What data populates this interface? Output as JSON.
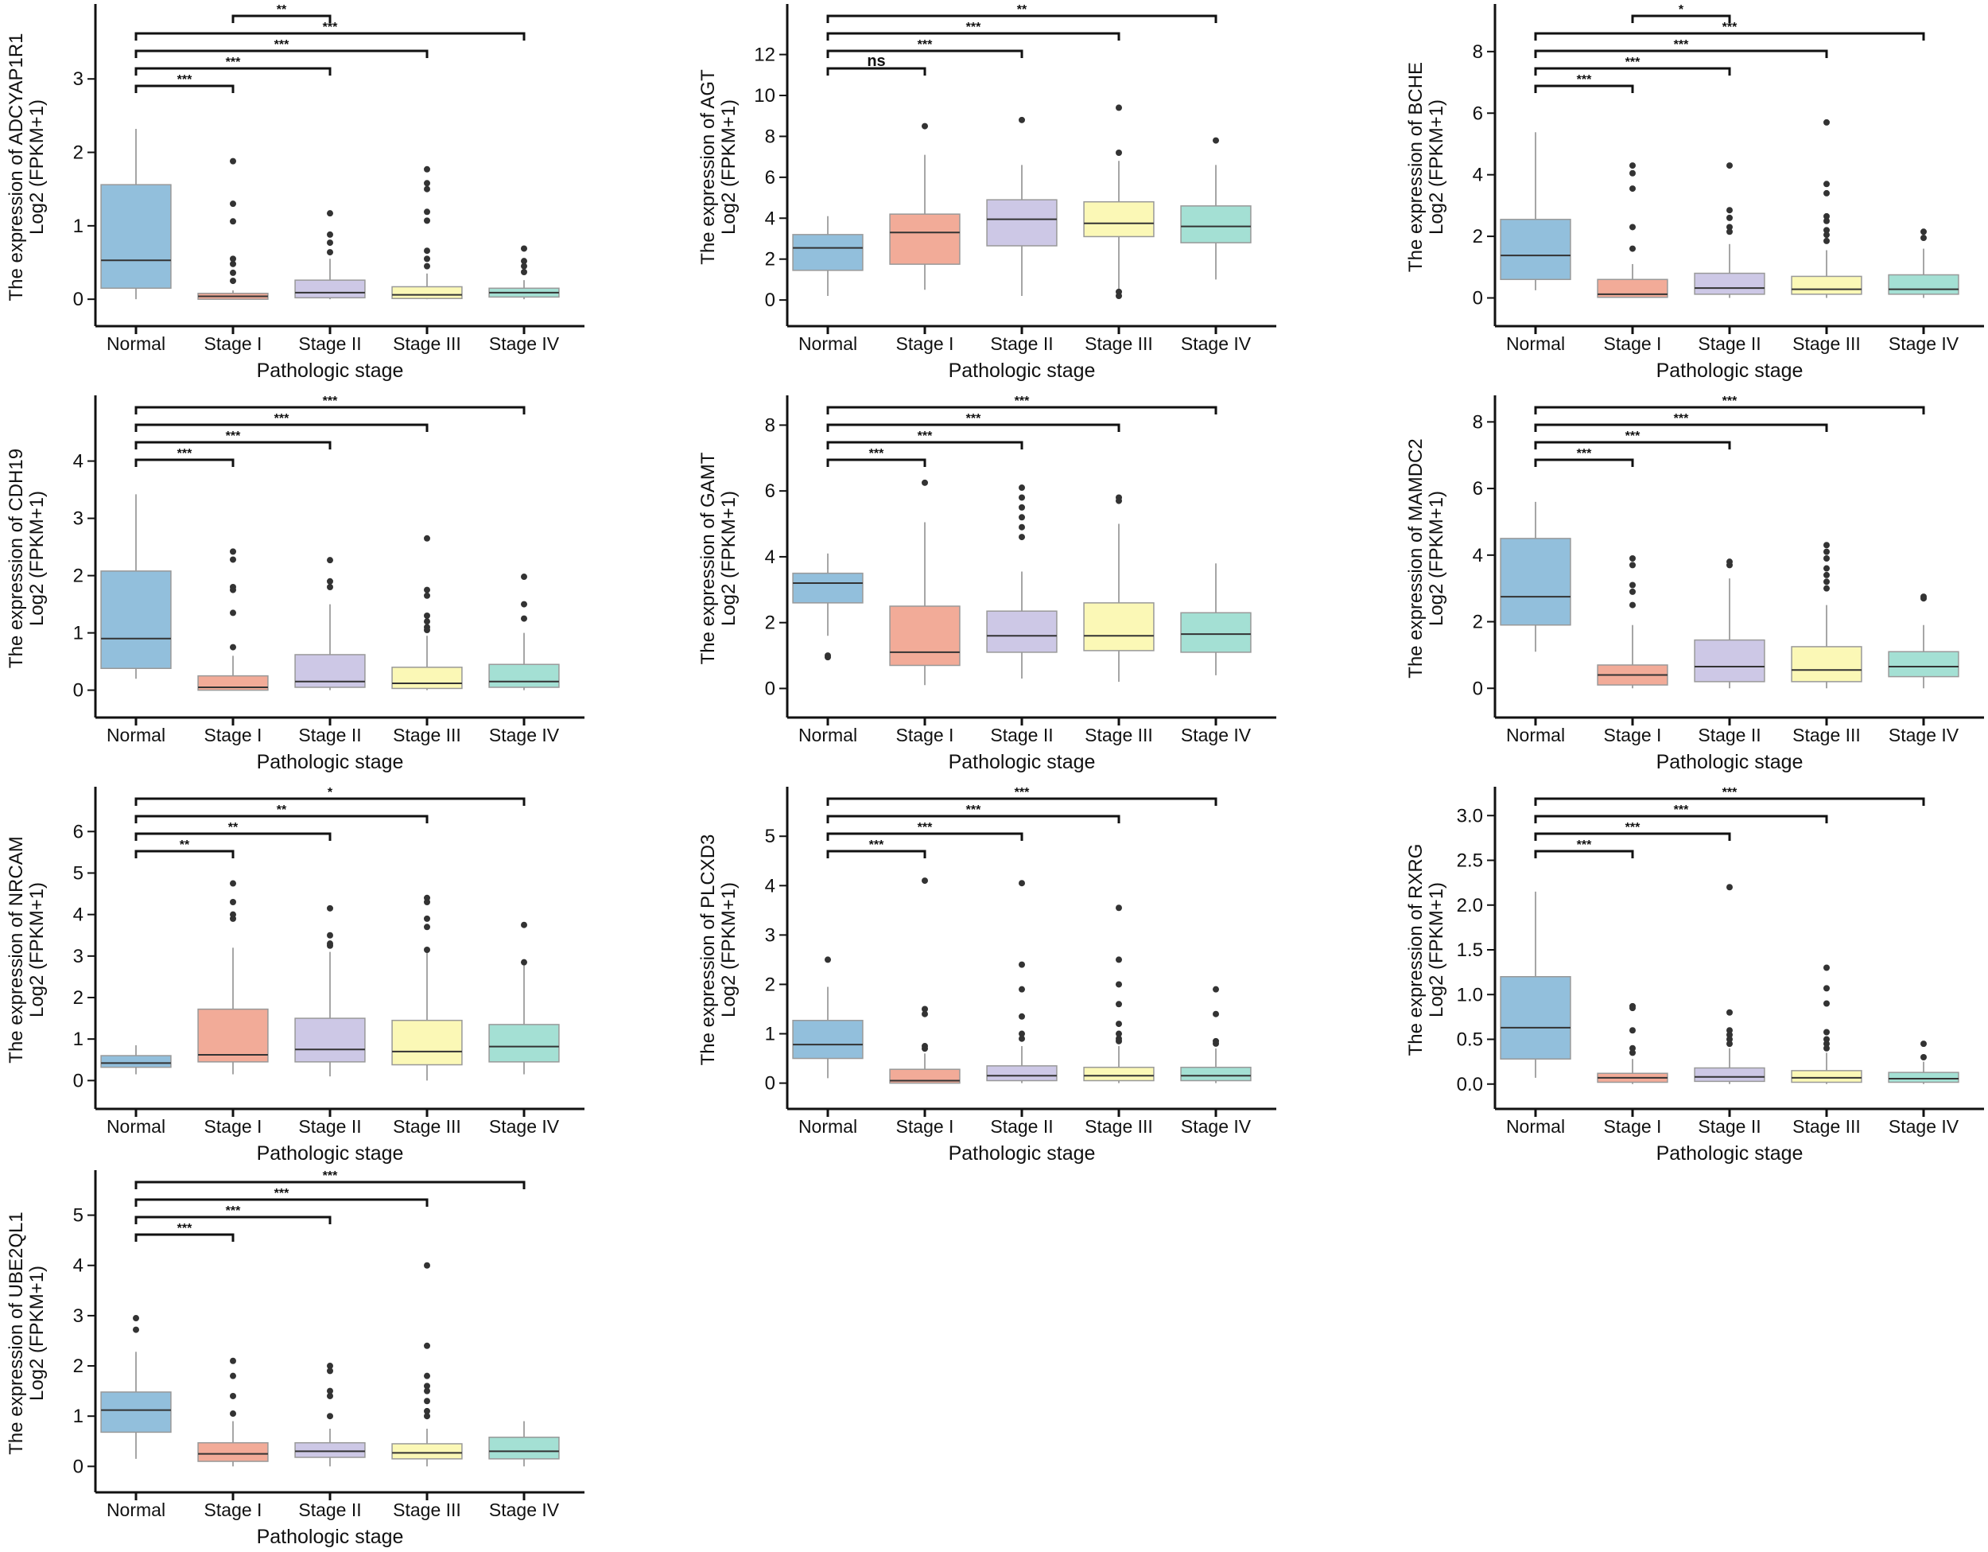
{
  "colors": {
    "Normal": "#92bfdc",
    "Stage I": "#f2ab98",
    "Stage II": "#cdc8e6",
    "Stage III": "#fbf8b6",
    "Stage IV": "#a4e0d4"
  },
  "chart_data": [
    {
      "type": "box",
      "gene": "ADCYAP1R1",
      "ylabel": "The expression of ADCYAP1R1",
      "ylabel2": "Log2 (FPKM+1)",
      "xlabel": "Pathologic stage",
      "categories": [
        "Normal",
        "Stage I",
        "Stage II",
        "Stage III",
        "Stage IV"
      ],
      "ylim": [
        -0.15,
        3.75
      ],
      "yticks": [
        "0",
        "1",
        "2",
        "3"
      ],
      "boxes": [
        {
          "lo": 0,
          "q1": 0.15,
          "med": 0.53,
          "q3": 1.56,
          "hi": 2.32,
          "out": []
        },
        {
          "lo": 0,
          "q1": 0,
          "med": 0.04,
          "q3": 0.08,
          "hi": 0.12,
          "out": [
            1.88,
            1.3,
            1.06,
            0.55,
            0.48,
            0.36,
            0.25
          ]
        },
        {
          "lo": 0,
          "q1": 0.02,
          "med": 0.09,
          "q3": 0.26,
          "hi": 0.55,
          "out": [
            1.17,
            0.88,
            0.77,
            0.64
          ]
        },
        {
          "lo": 0,
          "q1": 0.01,
          "med": 0.06,
          "q3": 0.17,
          "hi": 0.35,
          "out": [
            1.77,
            1.58,
            1.5,
            1.19,
            1.07,
            0.66,
            0.55,
            0.45
          ]
        },
        {
          "lo": 0,
          "q1": 0.03,
          "med": 0.09,
          "q3": 0.15,
          "hi": 0.26,
          "out": [
            0.69,
            0.52,
            0.45,
            0.37
          ]
        }
      ],
      "comparisons": [
        {
          "a": 0,
          "b": 1,
          "label": "***"
        },
        {
          "a": 0,
          "b": 2,
          "label": "***"
        },
        {
          "a": 0,
          "b": 3,
          "label": "***"
        },
        {
          "a": 0,
          "b": 4,
          "label": "***"
        },
        {
          "a": 1,
          "b": 2,
          "label": "**"
        }
      ]
    },
    {
      "type": "box",
      "gene": "AGT",
      "ylabel": "The expression of AGT",
      "ylabel2": "Log2 (FPKM+1)",
      "xlabel": "Pathologic stage",
      "categories": [
        "Normal",
        "Stage I",
        "Stage II",
        "Stage III",
        "Stage IV"
      ],
      "ylim": [
        -0.5,
        13.5
      ],
      "yticks": [
        "0",
        "2",
        "4",
        "6",
        "8",
        "10",
        "12"
      ],
      "boxes": [
        {
          "lo": 0.2,
          "q1": 1.45,
          "med": 2.55,
          "q3": 3.2,
          "hi": 4.1,
          "out": []
        },
        {
          "lo": 0.5,
          "q1": 1.75,
          "med": 3.3,
          "q3": 4.2,
          "hi": 7.1,
          "out": [
            8.5
          ]
        },
        {
          "lo": 0.2,
          "q1": 2.65,
          "med": 3.95,
          "q3": 4.9,
          "hi": 6.6,
          "out": [
            8.8
          ]
        },
        {
          "lo": 0.5,
          "q1": 3.1,
          "med": 3.75,
          "q3": 4.8,
          "hi": 6.8,
          "out": [
            9.4,
            7.2,
            0.4,
            0.2
          ]
        },
        {
          "lo": 1,
          "q1": 2.8,
          "med": 3.6,
          "q3": 4.6,
          "hi": 6.6,
          "out": [
            7.8
          ]
        }
      ],
      "comparisons": [
        {
          "a": 0,
          "b": 1,
          "label": "ns"
        },
        {
          "a": 0,
          "b": 2,
          "label": "***"
        },
        {
          "a": 0,
          "b": 3,
          "label": "***"
        },
        {
          "a": 0,
          "b": 4,
          "label": "**"
        }
      ]
    },
    {
      "type": "box",
      "gene": "BCHE",
      "ylabel": "The expression of BCHE",
      "ylabel2": "Log2 (FPKM+1)",
      "xlabel": "Pathologic stage",
      "categories": [
        "Normal",
        "Stage I",
        "Stage II",
        "Stage III",
        "Stage IV"
      ],
      "ylim": [
        -0.4,
        8.9
      ],
      "yticks": [
        "0",
        "2",
        "4",
        "6",
        "8"
      ],
      "boxes": [
        {
          "lo": 0.25,
          "q1": 0.6,
          "med": 1.38,
          "q3": 2.55,
          "hi": 5.38,
          "out": []
        },
        {
          "lo": 0,
          "q1": 0.02,
          "med": 0.12,
          "q3": 0.6,
          "hi": 1.1,
          "out": [
            4.3,
            4.05,
            3.55,
            2.3,
            1.6
          ]
        },
        {
          "lo": 0,
          "q1": 0.12,
          "med": 0.32,
          "q3": 0.8,
          "hi": 1.75,
          "out": [
            4.3,
            2.85,
            2.6,
            2.3,
            2.15
          ]
        },
        {
          "lo": 0,
          "q1": 0.12,
          "med": 0.28,
          "q3": 0.7,
          "hi": 1.55,
          "out": [
            5.7,
            3.7,
            3.4,
            2.65,
            2.5,
            2.2,
            2.05,
            1.85
          ]
        },
        {
          "lo": 0,
          "q1": 0.12,
          "med": 0.28,
          "q3": 0.75,
          "hi": 1.6,
          "out": [
            2.15,
            1.95
          ]
        }
      ],
      "comparisons": [
        {
          "a": 0,
          "b": 1,
          "label": "***"
        },
        {
          "a": 0,
          "b": 2,
          "label": "***"
        },
        {
          "a": 0,
          "b": 3,
          "label": "***"
        },
        {
          "a": 0,
          "b": 4,
          "label": "***"
        },
        {
          "a": 1,
          "b": 2,
          "label": "*"
        }
      ]
    },
    {
      "type": "box",
      "gene": "CDH19",
      "ylabel": "The expression of CDH19",
      "ylabel2": "Log2 (FPKM+1)",
      "xlabel": "Pathologic stage",
      "categories": [
        "Normal",
        "Stage I",
        "Stage II",
        "Stage III",
        "Stage IV"
      ],
      "ylim": [
        -0.2,
        4.8
      ],
      "yticks": [
        "0",
        "1",
        "2",
        "3",
        "4"
      ],
      "boxes": [
        {
          "lo": 0.2,
          "q1": 0.38,
          "med": 0.9,
          "q3": 2.08,
          "hi": 3.42,
          "out": []
        },
        {
          "lo": 0,
          "q1": 0,
          "med": 0.05,
          "q3": 0.25,
          "hi": 0.6,
          "out": [
            2.42,
            2.28,
            1.8,
            1.75,
            1.35,
            0.75
          ]
        },
        {
          "lo": 0,
          "q1": 0.05,
          "med": 0.15,
          "q3": 0.62,
          "hi": 1.5,
          "out": [
            2.27,
            1.9,
            1.8
          ]
        },
        {
          "lo": 0,
          "q1": 0.03,
          "med": 0.12,
          "q3": 0.4,
          "hi": 0.95,
          "out": [
            2.65,
            1.75,
            1.65,
            1.3,
            1.2,
            1.1,
            1.05
          ]
        },
        {
          "lo": 0,
          "q1": 0.05,
          "med": 0.15,
          "q3": 0.45,
          "hi": 1.0,
          "out": [
            1.98,
            1.5,
            1.25
          ]
        }
      ],
      "comparisons": [
        {
          "a": 0,
          "b": 1,
          "label": "***"
        },
        {
          "a": 0,
          "b": 2,
          "label": "***"
        },
        {
          "a": 0,
          "b": 3,
          "label": "***"
        },
        {
          "a": 0,
          "b": 4,
          "label": "***"
        }
      ]
    },
    {
      "type": "box",
      "gene": "GAMT",
      "ylabel": "The expression of GAMT",
      "ylabel2": "Log2 (FPKM+1)",
      "xlabel": "Pathologic stage",
      "categories": [
        "Normal",
        "Stage I",
        "Stage II",
        "Stage III",
        "Stage IV"
      ],
      "ylim": [
        -0.4,
        8.3
      ],
      "yticks": [
        "0",
        "2",
        "4",
        "6",
        "8"
      ],
      "boxes": [
        {
          "lo": 1.6,
          "q1": 2.6,
          "med": 3.2,
          "q3": 3.5,
          "hi": 4.1,
          "out": [
            1.0,
            0.95
          ]
        },
        {
          "lo": 0.1,
          "q1": 0.7,
          "med": 1.1,
          "q3": 2.5,
          "hi": 5.05,
          "out": [
            6.25
          ]
        },
        {
          "lo": 0.3,
          "q1": 1.1,
          "med": 1.6,
          "q3": 2.35,
          "hi": 3.55,
          "out": [
            6.1,
            5.8,
            5.5,
            5.2,
            4.9,
            4.6
          ]
        },
        {
          "lo": 0.2,
          "q1": 1.15,
          "med": 1.6,
          "q3": 2.6,
          "hi": 5.0,
          "out": [
            5.8,
            5.7
          ]
        },
        {
          "lo": 0.4,
          "q1": 1.1,
          "med": 1.65,
          "q3": 2.3,
          "hi": 3.8,
          "out": []
        }
      ],
      "comparisons": [
        {
          "a": 0,
          "b": 1,
          "label": "***"
        },
        {
          "a": 0,
          "b": 2,
          "label": "***"
        },
        {
          "a": 0,
          "b": 3,
          "label": "***"
        },
        {
          "a": 0,
          "b": 4,
          "label": "***"
        }
      ]
    },
    {
      "type": "box",
      "gene": "MAMDC2",
      "ylabel": "The expression of MAMDC2",
      "ylabel2": "Log2 (FPKM+1)",
      "xlabel": "Pathologic stage",
      "categories": [
        "Normal",
        "Stage I",
        "Stage II",
        "Stage III",
        "Stage IV"
      ],
      "ylim": [
        -0.4,
        8.2
      ],
      "yticks": [
        "0",
        "2",
        "4",
        "6",
        "8"
      ],
      "boxes": [
        {
          "lo": 1.1,
          "q1": 1.9,
          "med": 2.75,
          "q3": 4.5,
          "hi": 5.6,
          "out": []
        },
        {
          "lo": 0,
          "q1": 0.1,
          "med": 0.4,
          "q3": 0.7,
          "hi": 1.9,
          "out": [
            3.9,
            3.7,
            3.1,
            2.9,
            2.5
          ]
        },
        {
          "lo": 0,
          "q1": 0.2,
          "med": 0.65,
          "q3": 1.45,
          "hi": 3.3,
          "out": [
            3.8,
            3.7
          ]
        },
        {
          "lo": 0,
          "q1": 0.2,
          "med": 0.55,
          "q3": 1.25,
          "hi": 2.5,
          "out": [
            4.3,
            4.1,
            3.9,
            3.6,
            3.4,
            3.2,
            3.0
          ]
        },
        {
          "lo": 0,
          "q1": 0.35,
          "med": 0.65,
          "q3": 1.1,
          "hi": 1.9,
          "out": [
            2.75,
            2.7
          ]
        }
      ],
      "comparisons": [
        {
          "a": 0,
          "b": 1,
          "label": "***"
        },
        {
          "a": 0,
          "b": 2,
          "label": "***"
        },
        {
          "a": 0,
          "b": 3,
          "label": "***"
        },
        {
          "a": 0,
          "b": 4,
          "label": "***"
        }
      ]
    },
    {
      "type": "box",
      "gene": "NRCAM",
      "ylabel": "The expression of NRCAM",
      "ylabel2": "Log2 (FPKM+1)",
      "xlabel": "Pathologic stage",
      "categories": [
        "Normal",
        "Stage I",
        "Stage II",
        "Stage III",
        "Stage IV"
      ],
      "ylim": [
        -0.3,
        6.6
      ],
      "yticks": [
        "0",
        "1",
        "2",
        "3",
        "4",
        "5",
        "6"
      ],
      "boxes": [
        {
          "lo": 0.15,
          "q1": 0.32,
          "med": 0.42,
          "q3": 0.6,
          "hi": 0.85,
          "out": []
        },
        {
          "lo": 0.15,
          "q1": 0.45,
          "med": 0.62,
          "q3": 1.72,
          "hi": 3.2,
          "out": [
            4.75,
            4.3,
            4.0,
            3.9
          ]
        },
        {
          "lo": 0.1,
          "q1": 0.45,
          "med": 0.75,
          "q3": 1.5,
          "hi": 3.1,
          "out": [
            4.15,
            3.5,
            3.3,
            3.25
          ]
        },
        {
          "lo": 0,
          "q1": 0.38,
          "med": 0.7,
          "q3": 1.45,
          "hi": 3.1,
          "out": [
            4.4,
            4.3,
            3.9,
            3.7,
            3.15
          ]
        },
        {
          "lo": 0.15,
          "q1": 0.45,
          "med": 0.82,
          "q3": 1.35,
          "hi": 2.8,
          "out": [
            3.75,
            2.85
          ]
        }
      ],
      "comparisons": [
        {
          "a": 0,
          "b": 1,
          "label": "**"
        },
        {
          "a": 0,
          "b": 2,
          "label": "**"
        },
        {
          "a": 0,
          "b": 3,
          "label": "**"
        },
        {
          "a": 0,
          "b": 4,
          "label": "*"
        }
      ]
    },
    {
      "type": "box",
      "gene": "PLCXD3",
      "ylabel": "The expression of PLCXD3",
      "ylabel2": "Log2 (FPKM+1)",
      "xlabel": "Pathologic stage",
      "categories": [
        "Normal",
        "Stage I",
        "Stage II",
        "Stage III",
        "Stage IV"
      ],
      "ylim": [
        -0.2,
        5.6
      ],
      "yticks": [
        "0",
        "1",
        "2",
        "3",
        "4",
        "5"
      ],
      "boxes": [
        {
          "lo": 0.1,
          "q1": 0.5,
          "med": 0.78,
          "q3": 1.27,
          "hi": 1.95,
          "out": [
            2.5
          ]
        },
        {
          "lo": 0,
          "q1": 0,
          "med": 0.05,
          "q3": 0.28,
          "hi": 0.6,
          "out": [
            4.1,
            1.5,
            1.4,
            0.75,
            0.7
          ]
        },
        {
          "lo": 0,
          "q1": 0.05,
          "med": 0.15,
          "q3": 0.35,
          "hi": 0.75,
          "out": [
            4.05,
            2.4,
            1.9,
            1.35,
            1.0,
            0.9
          ]
        },
        {
          "lo": 0,
          "q1": 0.05,
          "med": 0.15,
          "q3": 0.32,
          "hi": 0.75,
          "out": [
            3.55,
            2.5,
            2.0,
            1.6,
            1.2,
            1.0,
            0.9,
            0.85
          ]
        },
        {
          "lo": 0,
          "q1": 0.05,
          "med": 0.15,
          "q3": 0.32,
          "hi": 0.7,
          "out": [
            1.9,
            1.4,
            0.85,
            0.8
          ]
        }
      ],
      "comparisons": [
        {
          "a": 0,
          "b": 1,
          "label": "***"
        },
        {
          "a": 0,
          "b": 2,
          "label": "***"
        },
        {
          "a": 0,
          "b": 3,
          "label": "***"
        },
        {
          "a": 0,
          "b": 4,
          "label": "***"
        }
      ]
    },
    {
      "type": "box",
      "gene": "RXRG",
      "ylabel": "The expression of RXRG",
      "ylabel2": "Log2 (FPKM+1)",
      "xlabel": "Pathologic stage",
      "categories": [
        "Normal",
        "Stage I",
        "Stage II",
        "Stage III",
        "Stage IV"
      ],
      "ylim": [
        -0.1,
        3.1
      ],
      "yticks": [
        "0.0",
        "0.5",
        "1.0",
        "1.5",
        "2.0",
        "2.5",
        "3.0"
      ],
      "boxes": [
        {
          "lo": 0.07,
          "q1": 0.28,
          "med": 0.63,
          "q3": 1.2,
          "hi": 2.15,
          "out": []
        },
        {
          "lo": 0,
          "q1": 0.02,
          "med": 0.07,
          "q3": 0.12,
          "hi": 0.28,
          "out": [
            0.87,
            0.85,
            0.6,
            0.4,
            0.35
          ]
        },
        {
          "lo": 0,
          "q1": 0.03,
          "med": 0.08,
          "q3": 0.18,
          "hi": 0.4,
          "out": [
            2.2,
            0.8,
            0.6,
            0.55,
            0.5,
            0.45
          ]
        },
        {
          "lo": 0,
          "q1": 0.02,
          "med": 0.07,
          "q3": 0.15,
          "hi": 0.35,
          "out": [
            1.3,
            1.07,
            0.9,
            0.58,
            0.5,
            0.45,
            0.4
          ]
        },
        {
          "lo": 0,
          "q1": 0.02,
          "med": 0.06,
          "q3": 0.13,
          "hi": 0.25,
          "out": [
            0.45,
            0.3
          ]
        }
      ],
      "comparisons": [
        {
          "a": 0,
          "b": 1,
          "label": "***"
        },
        {
          "a": 0,
          "b": 2,
          "label": "***"
        },
        {
          "a": 0,
          "b": 3,
          "label": "***"
        },
        {
          "a": 0,
          "b": 4,
          "label": "***"
        }
      ]
    },
    {
      "type": "box",
      "gene": "UBE2QL1",
      "ylabel": "The expression of UBE2QL1",
      "ylabel2": "Log2 (FPKM+1)",
      "xlabel": "Pathologic stage",
      "categories": [
        "Normal",
        "Stage I",
        "Stage II",
        "Stage III",
        "Stage IV"
      ],
      "ylim": [
        -0.2,
        5.5
      ],
      "yticks": [
        "0",
        "1",
        "2",
        "3",
        "4",
        "5"
      ],
      "boxes": [
        {
          "lo": 0.15,
          "q1": 0.68,
          "med": 1.12,
          "q3": 1.48,
          "hi": 2.28,
          "out": [
            2.95,
            2.72
          ]
        },
        {
          "lo": 0,
          "q1": 0.1,
          "med": 0.25,
          "q3": 0.47,
          "hi": 0.9,
          "out": [
            2.1,
            1.8,
            1.4,
            1.05
          ]
        },
        {
          "lo": 0,
          "q1": 0.18,
          "med": 0.3,
          "q3": 0.47,
          "hi": 0.75,
          "out": [
            2.0,
            1.9,
            1.5,
            1.4,
            1.0
          ]
        },
        {
          "lo": 0,
          "q1": 0.15,
          "med": 0.27,
          "q3": 0.45,
          "hi": 0.75,
          "out": [
            4.0,
            2.4,
            1.8,
            1.6,
            1.5,
            1.3,
            1.1,
            1.0
          ]
        },
        {
          "lo": 0,
          "q1": 0.15,
          "med": 0.3,
          "q3": 0.58,
          "hi": 0.9,
          "out": []
        }
      ],
      "comparisons": [
        {
          "a": 0,
          "b": 1,
          "label": "***"
        },
        {
          "a": 0,
          "b": 2,
          "label": "***"
        },
        {
          "a": 0,
          "b": 3,
          "label": "***"
        },
        {
          "a": 0,
          "b": 4,
          "label": "***"
        }
      ]
    }
  ]
}
